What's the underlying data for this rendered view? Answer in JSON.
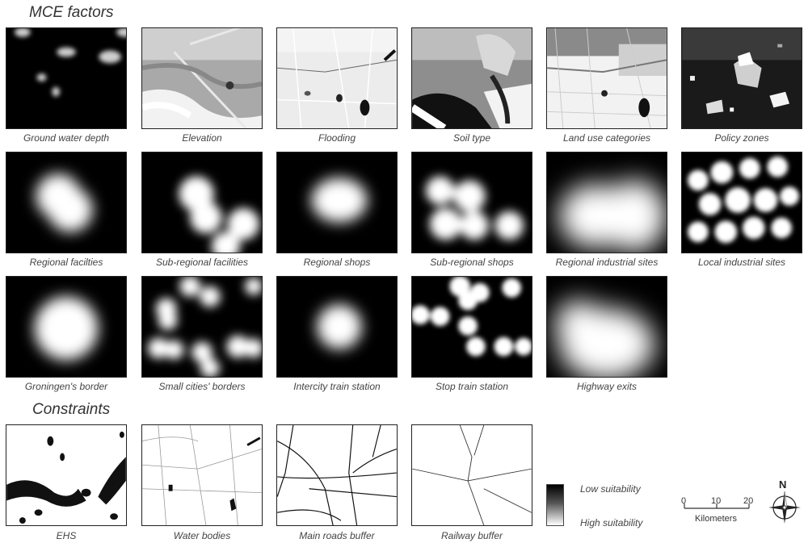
{
  "sections": {
    "mce_title": "MCE factors",
    "constraints_title": "Constraints"
  },
  "captions": {
    "r1": [
      "Ground water depth",
      "Elevation",
      "Flooding",
      "Soil type",
      "Land use categories",
      "Policy zones"
    ],
    "r2": [
      "Regional facilties",
      "Sub-regional facilities",
      "Regional shops",
      "Sub-regional shops",
      "Regional industrial sites",
      "Local industrial sites"
    ],
    "r3": [
      "Groningen's border",
      "Small cities' borders",
      "Intercity train station",
      "Stop train station",
      "Highway exits"
    ],
    "r4": [
      "EHS",
      "Water bodies",
      "Main roads buffer",
      "Railway buffer"
    ]
  },
  "legend": {
    "low": "Low suitability",
    "high": "High suitability"
  },
  "scalebar": {
    "ticks": [
      "0",
      "10",
      "20"
    ],
    "unit": "Kilometers"
  },
  "north_arrow": {
    "label": "N"
  }
}
